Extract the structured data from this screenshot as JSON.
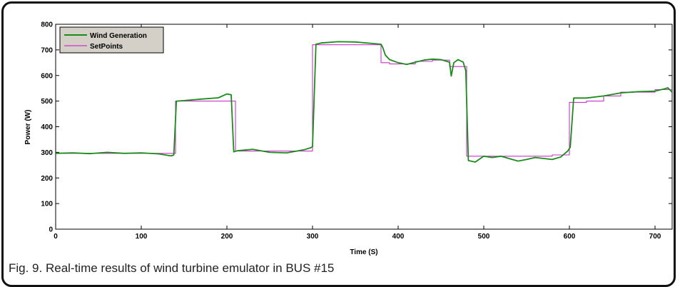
{
  "caption": "Fig. 9. Real-time results of wind turbine emulator in BUS #15",
  "colors": {
    "wind_generation": "#1a8c1a",
    "setpoints": "#cc33cc",
    "legend_bg": "#d4d0c8",
    "axes": "#000000"
  },
  "chart_data": {
    "type": "line",
    "title": "",
    "xlabel": "Time (S)",
    "ylabel": "Power (W)",
    "xlim": [
      0,
      720
    ],
    "ylim": [
      0,
      800
    ],
    "xticks": [
      0,
      100,
      200,
      300,
      400,
      500,
      600,
      700
    ],
    "yticks": [
      0,
      100,
      200,
      300,
      400,
      500,
      600,
      700,
      800
    ],
    "grid": false,
    "legend": "top-left",
    "series": [
      {
        "name": "Wind Generation",
        "x": [
          0,
          20,
          40,
          60,
          80,
          100,
          120,
          135,
          138,
          141,
          150,
          170,
          190,
          200,
          205,
          208,
          212,
          230,
          250,
          270,
          290,
          298,
          300,
          304,
          310,
          330,
          350,
          370,
          380,
          382,
          385,
          390,
          400,
          410,
          420,
          430,
          440,
          450,
          460,
          462,
          465,
          470,
          476,
          479,
          482,
          490,
          500,
          510,
          520,
          530,
          540,
          550,
          560,
          570,
          580,
          590,
          598,
          601,
          605,
          620,
          640,
          660,
          680,
          700,
          710,
          715,
          720
        ],
        "y": [
          296,
          298,
          295,
          300,
          296,
          298,
          294,
          286,
          290,
          500,
          502,
          508,
          513,
          528,
          525,
          302,
          306,
          312,
          300,
          298,
          310,
          318,
          322,
          722,
          727,
          732,
          731,
          725,
          722,
          710,
          680,
          662,
          650,
          643,
          652,
          660,
          664,
          662,
          652,
          598,
          650,
          662,
          652,
          618,
          268,
          262,
          285,
          280,
          285,
          275,
          266,
          272,
          280,
          276,
          272,
          282,
          305,
          320,
          512,
          512,
          520,
          532,
          537,
          539,
          547,
          552,
          535
        ]
      },
      {
        "name": "SetPoints",
        "x": [
          0,
          140,
          140,
          210,
          210,
          300,
          300,
          380,
          380,
          390,
          390,
          420,
          420,
          440,
          440,
          460,
          460,
          480,
          480,
          580,
          580,
          600,
          600,
          620,
          620,
          640,
          640,
          660,
          660,
          700,
          700,
          720
        ],
        "y": [
          296,
          296,
          500,
          500,
          305,
          305,
          720,
          720,
          650,
          650,
          645,
          645,
          655,
          655,
          660,
          660,
          635,
          635,
          285,
          285,
          290,
          290,
          495,
          495,
          500,
          500,
          520,
          520,
          535,
          535,
          545,
          545
        ]
      }
    ]
  }
}
